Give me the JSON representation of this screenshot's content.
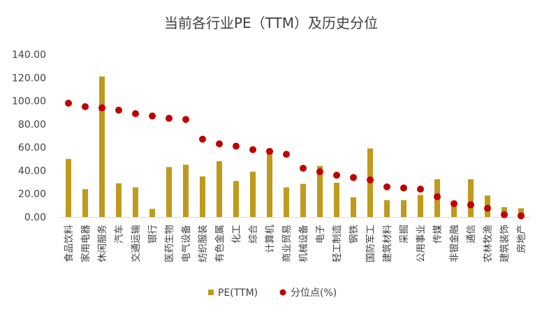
{
  "chart_data": {
    "type": "bar",
    "title": "当前各行业PE（TTM）及历史分位",
    "xlabel": "",
    "ylabel": "",
    "ylim": [
      0,
      140
    ],
    "yticks": [
      "0.00",
      "20.00",
      "40.00",
      "60.00",
      "80.00",
      "100.00",
      "120.00",
      "140.00"
    ],
    "grid": false,
    "legend_position": "bottom",
    "categories": [
      "食品饮料",
      "家用电器",
      "休闲服务",
      "汽车",
      "交通运输",
      "银行",
      "医药生物",
      "电气设备",
      "纺织服装",
      "有色金属",
      "化工",
      "综合",
      "计算机",
      "商业贸易",
      "机械设备",
      "电子",
      "轻工制造",
      "钢铁",
      "国防军工",
      "建筑材料",
      "采掘",
      "公用事业",
      "传媒",
      "非银金融",
      "通信",
      "农林牧渔",
      "建筑装饰",
      "房地产"
    ],
    "series": [
      {
        "name": "PE(TTM)",
        "type": "bar",
        "color": "#C09A1C",
        "values": [
          50,
          24,
          121,
          29,
          25.5,
          7,
          43,
          45,
          35,
          48,
          31,
          39,
          56,
          25.5,
          28.5,
          44,
          29.5,
          17,
          59,
          14.5,
          14.5,
          19,
          32.5,
          11.5,
          32.5,
          18.5,
          8.5,
          7.5
        ]
      },
      {
        "name": "分位点(%)",
        "type": "scatter",
        "color": "#C00000",
        "values": [
          98,
          95,
          94,
          92,
          89,
          87,
          85,
          84,
          67,
          63,
          61,
          58,
          56.5,
          54,
          42,
          39,
          36,
          34,
          32,
          26,
          25,
          24,
          17.5,
          11.5,
          10.5,
          7.5,
          2,
          1
        ]
      }
    ]
  }
}
